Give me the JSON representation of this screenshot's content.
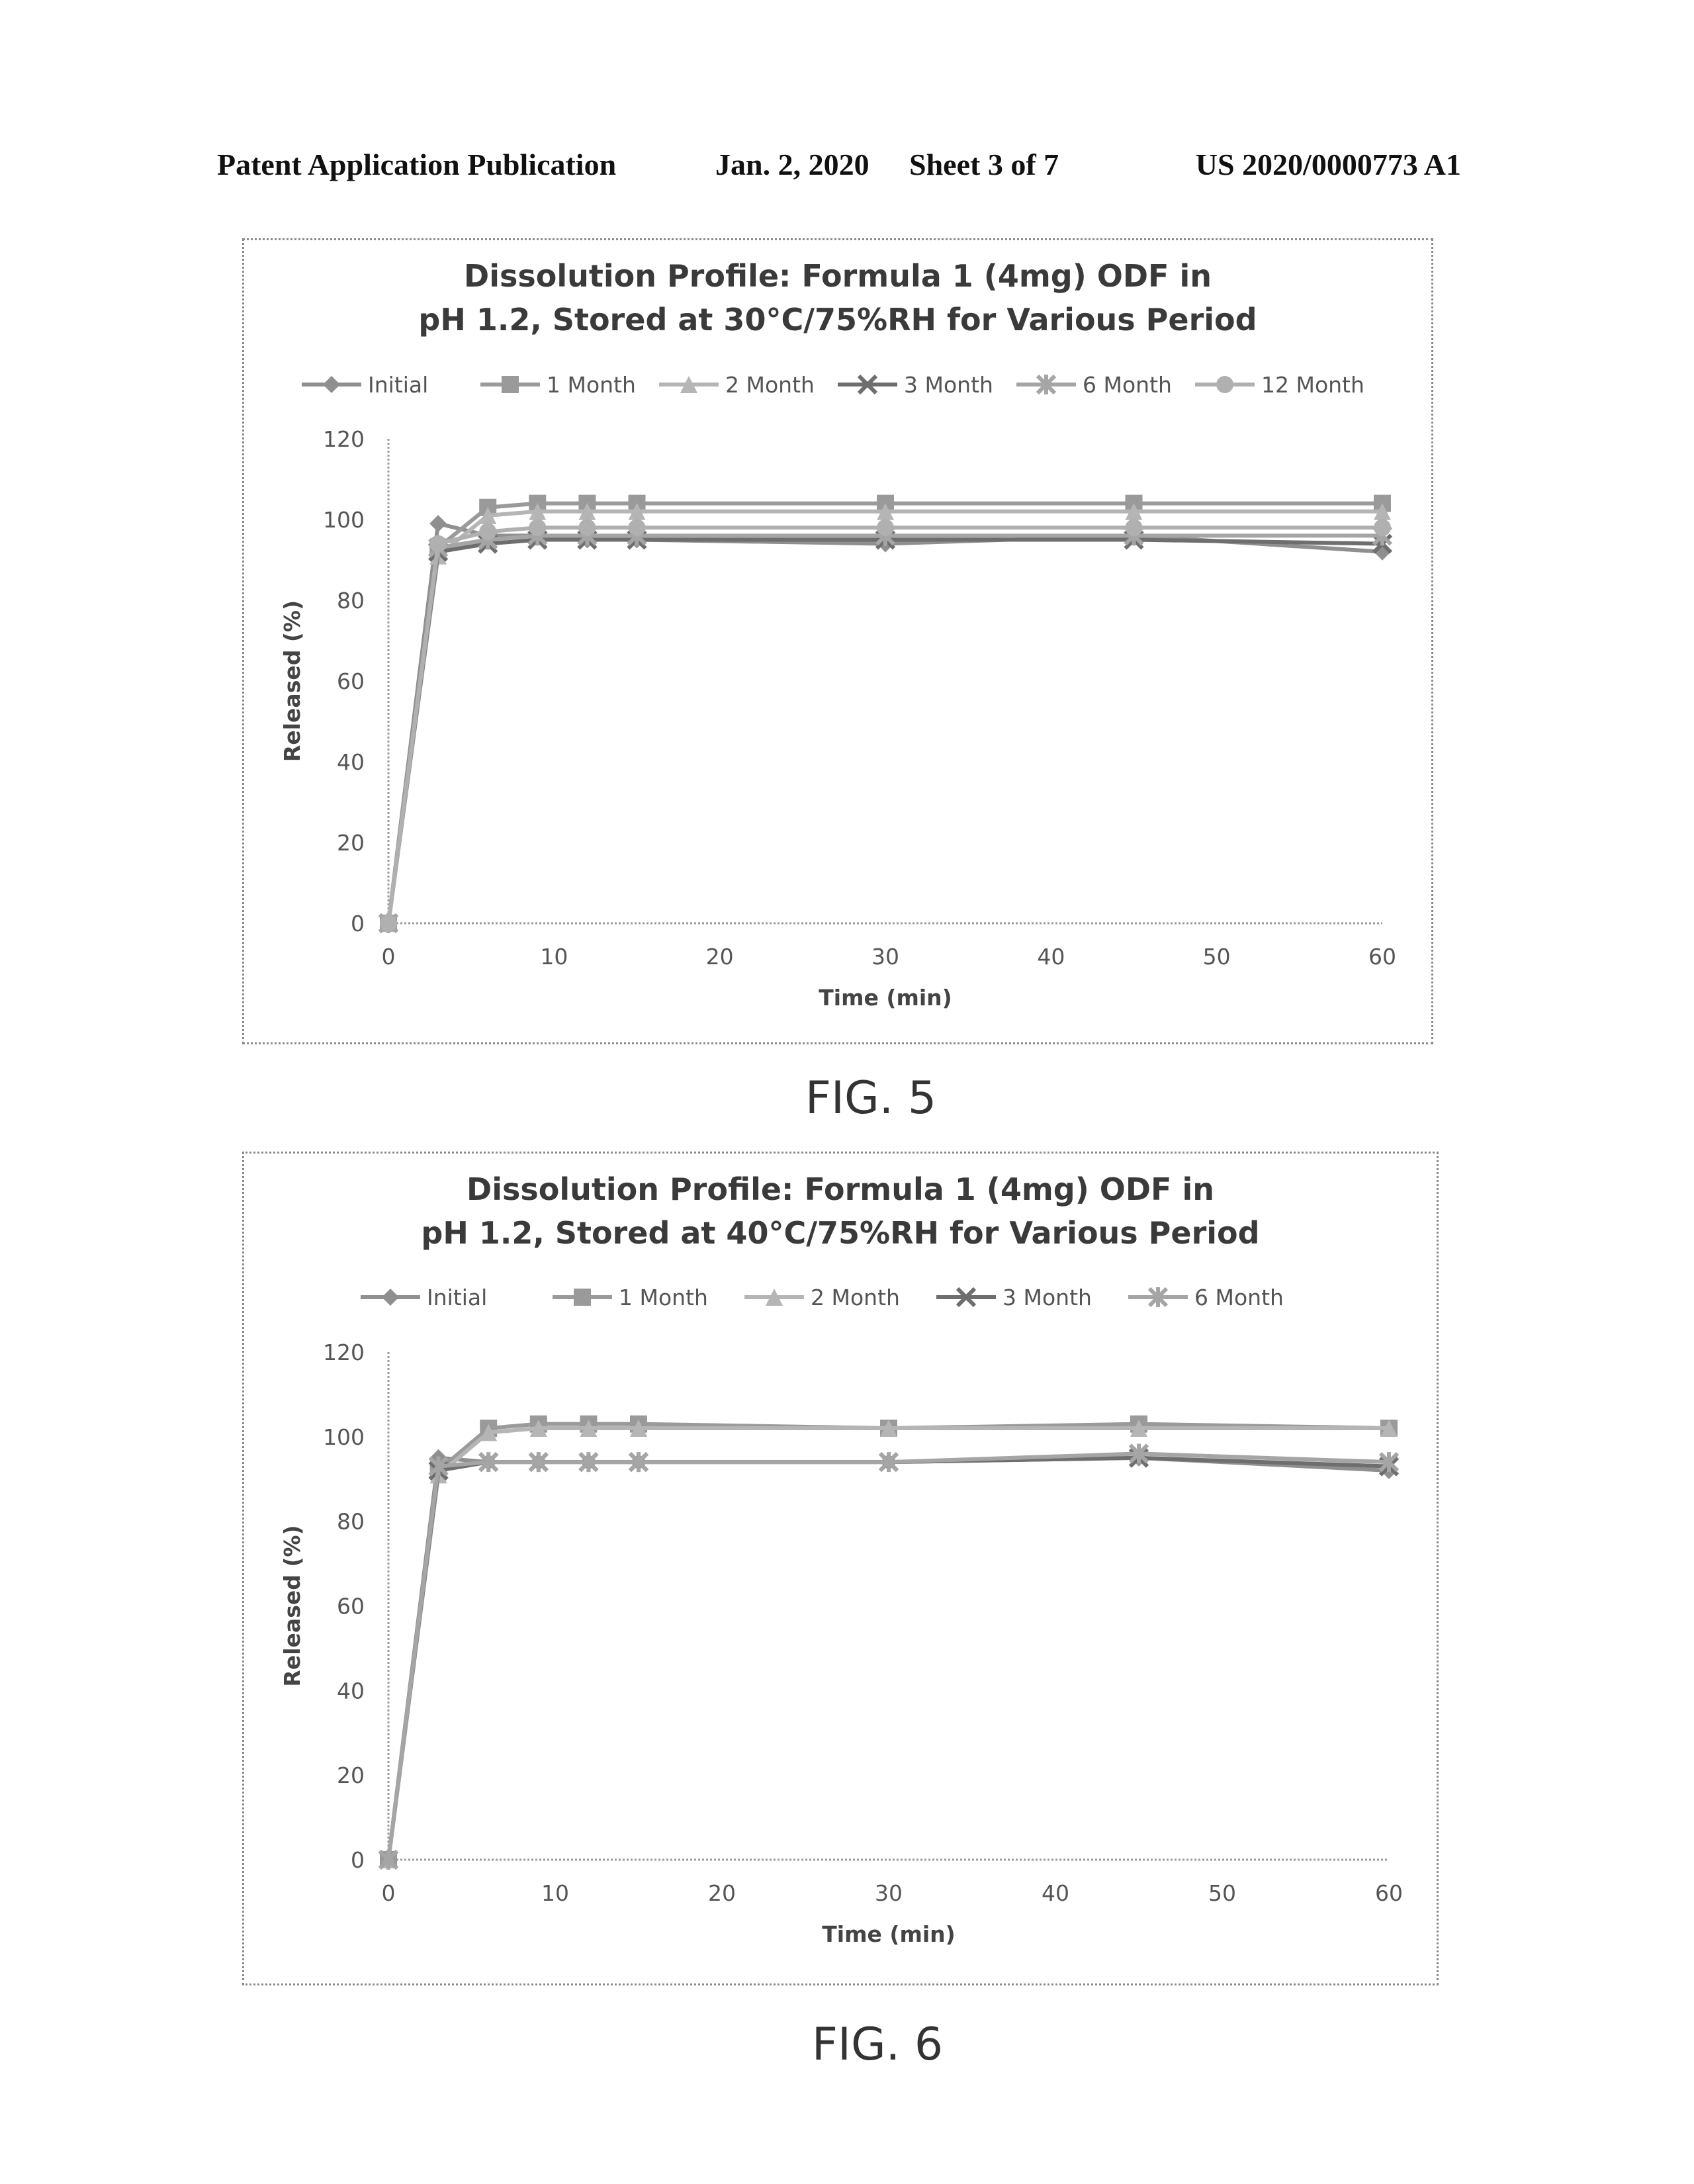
{
  "header": {
    "publication": "Patent Application Publication",
    "date": "Jan. 2, 2020",
    "sheet": "Sheet 3 of 7",
    "number": "US 2020/0000773 A1"
  },
  "figures": [
    {
      "label": "FIG. 5"
    },
    {
      "label": "FIG. 6"
    }
  ],
  "chart_data": [
    {
      "type": "line",
      "title": [
        "Dissolution Profile: Formula 1 (4mg) ODF in",
        "pH 1.2, Stored at 30°C/75%RH for Various Period"
      ],
      "xlabel": "Time (min)",
      "ylabel": "Released (%)",
      "xlim": [
        0,
        60
      ],
      "ylim": [
        0,
        120
      ],
      "xticks": [
        0,
        10,
        20,
        30,
        40,
        50,
        60
      ],
      "yticks": [
        0,
        20,
        40,
        60,
        80,
        100,
        120
      ],
      "grid": false,
      "legend_position": "top",
      "x": [
        0,
        3,
        6,
        9,
        12,
        15,
        30,
        45,
        60
      ],
      "series": [
        {
          "name": "Initial",
          "marker": "diamond",
          "color": "#8f8f8f",
          "values": [
            0,
            99,
            96,
            96,
            95,
            95,
            94,
            96,
            92
          ]
        },
        {
          "name": "1 Month",
          "marker": "square",
          "color": "#9a9a9a",
          "values": [
            0,
            93,
            103,
            104,
            104,
            104,
            104,
            104,
            104
          ]
        },
        {
          "name": "2 Month",
          "marker": "triangle",
          "color": "#b5b5b5",
          "values": [
            0,
            91,
            101,
            102,
            102,
            102,
            102,
            102,
            102
          ]
        },
        {
          "name": "3 Month",
          "marker": "x",
          "color": "#6e6e6e",
          "values": [
            0,
            92,
            94,
            95,
            95,
            95,
            95,
            95,
            94
          ]
        },
        {
          "name": "6 Month",
          "marker": "star",
          "color": "#a5a5a5",
          "values": [
            0,
            93,
            95,
            96,
            96,
            96,
            96,
            96,
            96
          ]
        },
        {
          "name": "12 Month",
          "marker": "circle",
          "color": "#b0b0b0",
          "values": [
            0,
            94,
            97,
            98,
            98,
            98,
            98,
            98,
            98
          ]
        }
      ]
    },
    {
      "type": "line",
      "title": [
        "Dissolution Profile: Formula 1 (4mg) ODF in",
        "pH 1.2, Stored at 40°C/75%RH for Various Period"
      ],
      "xlabel": "Time (min)",
      "ylabel": "Released (%)",
      "xlim": [
        0,
        60
      ],
      "ylim": [
        0,
        120
      ],
      "xticks": [
        0,
        10,
        20,
        30,
        40,
        50,
        60
      ],
      "yticks": [
        0,
        20,
        40,
        60,
        80,
        100,
        120
      ],
      "grid": false,
      "legend_position": "top",
      "x": [
        0,
        3,
        6,
        9,
        12,
        15,
        30,
        45,
        60
      ],
      "series": [
        {
          "name": "Initial",
          "marker": "diamond",
          "color": "#8f8f8f",
          "values": [
            0,
            95,
            94,
            94,
            94,
            94,
            94,
            95,
            92
          ]
        },
        {
          "name": "1 Month",
          "marker": "square",
          "color": "#9a9a9a",
          "values": [
            0,
            92,
            102,
            103,
            103,
            103,
            102,
            103,
            102
          ]
        },
        {
          "name": "2 Month",
          "marker": "triangle",
          "color": "#b5b5b5",
          "values": [
            0,
            91,
            101,
            102,
            102,
            102,
            102,
            102,
            102
          ]
        },
        {
          "name": "3 Month",
          "marker": "x",
          "color": "#6e6e6e",
          "values": [
            0,
            92,
            94,
            94,
            94,
            94,
            94,
            95,
            93
          ]
        },
        {
          "name": "6 Month",
          "marker": "star",
          "color": "#a5a5a5",
          "values": [
            0,
            93,
            94,
            94,
            94,
            94,
            94,
            96,
            94
          ]
        }
      ]
    }
  ]
}
